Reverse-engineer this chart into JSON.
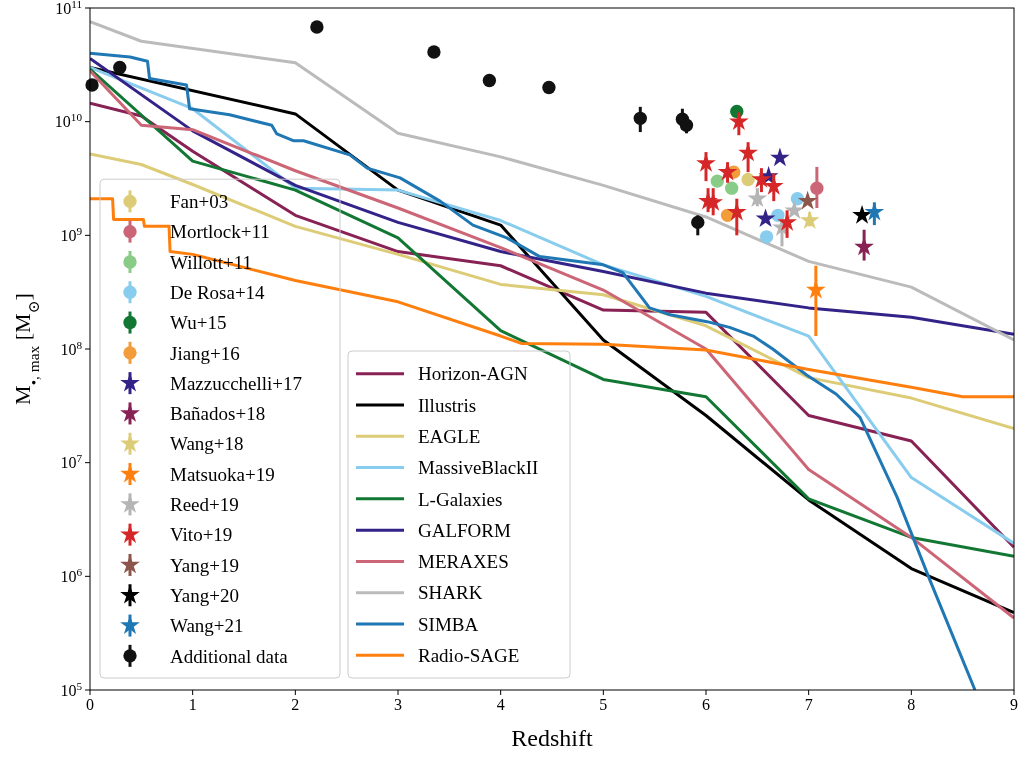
{
  "chart_data": {
    "type": "line",
    "xlabel": "Redshift",
    "ylabel": "M$_{•, max}$ [M$_{⊙}$]",
    "xlim": [
      0,
      9
    ],
    "xticks": [
      0,
      1,
      2,
      3,
      4,
      5,
      6,
      7,
      8,
      9
    ],
    "ylim": [
      100000.0,
      100000000000.0
    ],
    "yticks": [
      {
        "value": 100000.0,
        "label": "10$^{5}$"
      },
      {
        "value": 1000000.0,
        "label": "10$^{6}$"
      },
      {
        "value": 10000000.0,
        "label": "10$^{7}$"
      },
      {
        "value": 100000000.0,
        "label": "10$^{8}$"
      },
      {
        "value": 1000000000.0,
        "label": "10$^{9}$"
      },
      {
        "value": 10000000000.0,
        "label": "10$^{10}$"
      },
      {
        "value": 100000000000.0,
        "label": "10$^{11}$"
      }
    ],
    "log": "y",
    "grid": false,
    "legend": "bottom left",
    "line_style": "solid",
    "series": [
      {
        "name": "Fan+03",
        "type": "scatter",
        "marker": "circle",
        "color": "#ddcc77",
        "x": [
          6.41
        ],
        "values": [
          3100000000.0
        ]
      },
      {
        "name": "Mortlock+11",
        "type": "scatter",
        "marker": "circle",
        "color": "#cc6677",
        "x": [
          7.08
        ],
        "values": [
          2600000000.0
        ],
        "errors": [
          [
            1740000000.0,
            4000000000.0
          ]
        ]
      },
      {
        "name": "Willott+11",
        "type": "scatter",
        "marker": "circle",
        "color": "#88cc88",
        "x": [
          6.11,
          6.25
        ],
        "values": [
          3000000000.0,
          2600000000.0
        ]
      },
      {
        "name": "De Rosa+14",
        "type": "scatter",
        "marker": "circle",
        "color": "#88ccee",
        "x": [
          6.89,
          6.7,
          6.59
        ],
        "values": [
          2100000000.0,
          1500000000.0,
          970000000.0
        ]
      },
      {
        "name": "Wu+15",
        "type": "scatter",
        "marker": "circle",
        "color": "#117733",
        "x": [
          6.3
        ],
        "values": [
          12300000000.0
        ]
      },
      {
        "name": "Jiang+16",
        "type": "scatter",
        "marker": "circle",
        "color": "#f39c3c",
        "x": [
          6.27,
          6.21
        ],
        "values": [
          3600000000.0,
          1500000000.0
        ]
      },
      {
        "name": "Mazzucchelli+17",
        "type": "scatter",
        "marker": "star",
        "color": "#332288",
        "x": [
          6.72,
          6.61,
          6.58
        ],
        "values": [
          4800000000.0,
          3300000000.0,
          1400000000.0
        ]
      },
      {
        "name": "Bañados+18",
        "type": "scatter",
        "marker": "star",
        "color": "#882255",
        "x": [
          7.54
        ],
        "values": [
          790000000.0
        ],
        "errors": [
          [
            600000000.0,
            1120000000.0
          ]
        ]
      },
      {
        "name": "Wang+18",
        "type": "scatter",
        "marker": "star",
        "color": "#ddcc77",
        "x": [
          7.01
        ],
        "values": [
          1350000000.0
        ],
        "errors": [
          [
            1200000000.0,
            1600000000.0
          ]
        ]
      },
      {
        "name": "Matsuoka+19",
        "type": "scatter",
        "marker": "star",
        "color": "#ff7f0e",
        "x": [
          7.07
        ],
        "values": [
          330000000.0
        ],
        "errors": [
          [
            130000000.0,
            540000000.0
          ]
        ]
      },
      {
        "name": "Reed+19",
        "type": "scatter",
        "marker": "star",
        "color": "#b5b5b5",
        "x": [
          6.5,
          6.74,
          6.86
        ],
        "values": [
          2100000000.0,
          1170000000.0,
          1650000000.0
        ],
        "errors": [
          [
            1800000000.0,
            2600000000.0
          ],
          [
            800000000.0,
            1400000000.0
          ],
          null
        ]
      },
      {
        "name": "Vito+19",
        "type": "scatter",
        "marker": "star",
        "color": "#d62728",
        "x": [
          6.32,
          6.41,
          6.0,
          6.02,
          6.07,
          6.21,
          6.3,
          6.54,
          6.66,
          6.79
        ],
        "values": [
          10000000000.0,
          5300000000.0,
          4300000000.0,
          2000000000.0,
          1950000000.0,
          3600000000.0,
          1600000000.0,
          3100000000.0,
          2700000000.0,
          1300000000.0
        ],
        "errors": [
          [
            7600000000.0,
            12000000000.0
          ],
          [
            3600000000.0,
            6600000000.0
          ],
          [
            3000000000.0,
            5400000000.0
          ],
          [
            1600000000.0,
            2600000000.0
          ],
          [
            1500000000.0,
            2600000000.0
          ],
          [
            2900000000.0,
            4400000000.0
          ],
          [
            1000000000.0,
            2100000000.0
          ],
          [
            2400000000.0,
            3900000000.0
          ],
          [
            2000000000.0,
            3500000000.0
          ],
          [
            950000000.0,
            1660000000.0
          ]
        ]
      },
      {
        "name": "Yang+19",
        "type": "scatter",
        "marker": "star",
        "color": "#8c564b",
        "x": [
          6.99
        ],
        "values": [
          2000000000.0
        ]
      },
      {
        "name": "Yang+20",
        "type": "scatter",
        "marker": "star",
        "color": "#000000",
        "x": [
          7.52
        ],
        "values": [
          1500000000.0
        ]
      },
      {
        "name": "Wang+21",
        "type": "scatter",
        "marker": "star",
        "color": "#1f77b4",
        "x": [
          7.64
        ],
        "values": [
          1600000000.0
        ],
        "errors": [
          [
            1230000000.0,
            1950000000.0
          ]
        ]
      },
      {
        "name": "Additional data",
        "type": "scatter",
        "marker": "circle",
        "color": "#111111",
        "x": [
          0.02,
          0.29,
          2.21,
          3.35,
          3.89,
          4.47,
          5.36,
          5.77,
          5.81,
          5.92
        ],
        "values": [
          21000000000.0,
          30000000000.0,
          68000000000.0,
          41000000000.0,
          23000000000.0,
          20000000000.0,
          10700000000.0,
          10500000000.0,
          9300000000.0,
          1300000000.0
        ],
        "errors": [
          null,
          null,
          null,
          null,
          null,
          null,
          [
            8100000000.0,
            13500000000.0
          ],
          [
            8500000000.0,
            13000000000.0
          ],
          [
            7900000000.0,
            11000000000.0
          ],
          [
            1000000000.0,
            1500000000.0
          ]
        ]
      },
      {
        "name": "Horizon-AGN",
        "color": "#882255",
        "x": [
          0,
          0.5,
          1,
          2,
          3,
          4,
          5,
          6,
          7,
          8,
          9
        ],
        "values": [
          14500000000.0,
          11200000000.0,
          5500000000.0,
          1500000000.0,
          720000000.0,
          540000000.0,
          220000000.0,
          210000000.0,
          26000000.0,
          15500000.0,
          1800000.0
        ]
      },
      {
        "name": "Illustris",
        "color": "#000000",
        "x": [
          0,
          2,
          3,
          4,
          5,
          6,
          7,
          8,
          9
        ],
        "values": [
          30000000000.0,
          11700000000.0,
          2500000000.0,
          1230000000.0,
          120000000.0,
          26000000.0,
          4700000.0,
          1170000.0,
          480000.0
        ]
      },
      {
        "name": "EAGLE",
        "color": "#ddcc77",
        "x": [
          0,
          0.5,
          1,
          2,
          3,
          4,
          5,
          6,
          7,
          8,
          9
        ],
        "values": [
          5200000000.0,
          4200000000.0,
          2800000000.0,
          1200000000.0,
          680000000.0,
          370000000.0,
          300000000.0,
          160000000.0,
          56000000.0,
          37000000.0,
          20000000.0
        ]
      },
      {
        "name": "MassiveBlackII",
        "color": "#88ccee",
        "x": [
          0,
          1,
          2,
          3,
          4,
          5,
          6,
          7,
          8,
          9
        ],
        "values": [
          30000000000.0,
          13000000000.0,
          2600000000.0,
          2500000000.0,
          1350000000.0,
          550000000.0,
          290000000.0,
          130000000.0,
          7400000.0,
          1950000.0
        ]
      },
      {
        "name": "L-Galaxies",
        "color": "#117733",
        "x": [
          0,
          1,
          2,
          3,
          4,
          5,
          6,
          7,
          8,
          9
        ],
        "values": [
          29000000000.0,
          4500000000.0,
          2500000000.0,
          950000000.0,
          145000000.0,
          54000000.0,
          38000000.0,
          4800000.0,
          2200000.0,
          1500000.0
        ]
      },
      {
        "name": "GALFORM",
        "color": "#332288",
        "x": [
          0,
          1,
          2,
          3,
          4,
          5,
          6,
          7,
          8,
          9
        ],
        "values": [
          36000000000.0,
          8300000000.0,
          2750000000.0,
          1300000000.0,
          720000000.0,
          480000000.0,
          310000000.0,
          230000000.0,
          190000000.0,
          135000000.0
        ]
      },
      {
        "name": "MERAXES",
        "color": "#cc6677",
        "x": [
          0,
          0.5,
          1,
          2,
          3,
          4,
          5,
          6,
          7,
          8,
          9
        ],
        "values": [
          28000000000.0,
          9300000000.0,
          8500000000.0,
          3700000000.0,
          1740000000.0,
          780000000.0,
          330000000.0,
          100000000.0,
          8700000.0,
          2200000.0,
          430000.0
        ]
      },
      {
        "name": "SHARK",
        "color": "#bbbbbb",
        "x": [
          0,
          0.5,
          2,
          3,
          4,
          5,
          6,
          7,
          8,
          9
        ],
        "values": [
          76000000000.0,
          51000000000.0,
          33000000000.0,
          7900000000.0,
          4900000000.0,
          2750000000.0,
          1450000000.0,
          590000000.0,
          350000000.0,
          120000000.0
        ]
      },
      {
        "name": "SIMBA",
        "color": "#1f77b4",
        "x": [
          0,
          0.39,
          0.56,
          0.58,
          0.94,
          0.97,
          1.36,
          1.77,
          1.82,
          1.98,
          2.08,
          2.53,
          2.7,
          3.02,
          3.41,
          3.73,
          4.06,
          4.38,
          5.0,
          5.19,
          5.45,
          5.65,
          6.01,
          6.23,
          6.46,
          6.65,
          6.98,
          7.27,
          7.5,
          7.86,
          8.18,
          8.62
        ],
        "values": [
          40000000000.0,
          37000000000.0,
          34000000000.0,
          24000000000.0,
          21000000000.0,
          13000000000.0,
          11500000000.0,
          9300000000.0,
          7800000000.0,
          6800000000.0,
          6800000000.0,
          5100000000.0,
          3900000000.0,
          3200000000.0,
          2000000000.0,
          1230000000.0,
          950000000.0,
          650000000.0,
          550000000.0,
          470000000.0,
          230000000.0,
          200000000.0,
          174000000.0,
          155000000.0,
          130000000.0,
          100000000.0,
          59000000.0,
          40000000.0,
          25000000.0,
          5000000.0,
          930000.0,
          100000.0
        ]
      },
      {
        "name": "Radio-SAGE",
        "color": "#ff7f0e",
        "x": [
          0,
          0.22,
          0.23,
          0.52,
          0.53,
          0.77,
          0.78,
          1,
          2,
          3,
          4,
          4.2,
          5,
          6,
          7,
          8,
          8.5,
          9
        ],
        "values": [
          2100000000.0,
          2100000000.0,
          1380000000.0,
          1380000000.0,
          1200000000.0,
          1200000000.0,
          720000000.0,
          680000000.0,
          400000000.0,
          260000000.0,
          130000000.0,
          112000000.0,
          110000000.0,
          98000000.0,
          66000000.0,
          46000000.0,
          38000000.0,
          38000000.0
        ]
      }
    ]
  }
}
